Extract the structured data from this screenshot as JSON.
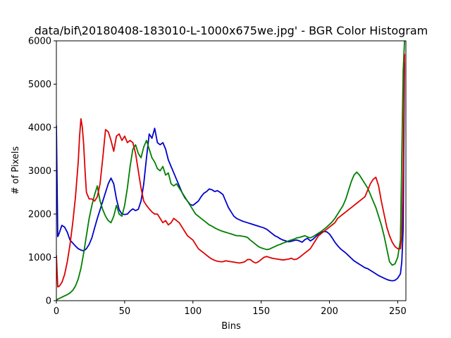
{
  "chart_data": {
    "type": "line",
    "title": "data/bif\\20180408-183010-L-1000x675we.jpg' - BGR Color Histogram",
    "xlabel": "Bins",
    "ylabel": "# of Pixels",
    "xlim": [
      0,
      256
    ],
    "ylim": [
      0,
      6000
    ],
    "xticks": [
      0,
      50,
      100,
      150,
      200,
      250
    ],
    "yticks": [
      0,
      1000,
      2000,
      3000,
      4000,
      5000,
      6000
    ],
    "xtick_labels": [
      "0",
      "50",
      "100",
      "150",
      "200",
      "250"
    ],
    "ytick_labels": [
      "0",
      "1000",
      "2000",
      "3000",
      "4000",
      "5000",
      "6000"
    ],
    "grid": false,
    "series": [
      {
        "color": "#0000cc",
        "x": [
          0,
          1,
          2,
          4,
          6,
          8,
          10,
          12,
          14,
          16,
          18,
          20,
          22,
          24,
          26,
          28,
          30,
          32,
          34,
          36,
          38,
          40,
          42,
          44,
          46,
          48,
          50,
          52,
          54,
          56,
          58,
          60,
          62,
          64,
          66,
          68,
          70,
          72,
          74,
          76,
          78,
          80,
          82,
          84,
          86,
          88,
          90,
          92,
          94,
          96,
          98,
          100,
          102,
          104,
          106,
          108,
          110,
          112,
          114,
          116,
          118,
          120,
          122,
          124,
          126,
          128,
          130,
          132,
          134,
          136,
          138,
          140,
          142,
          144,
          146,
          148,
          150,
          152,
          154,
          156,
          158,
          160,
          162,
          164,
          166,
          168,
          170,
          172,
          174,
          176,
          178,
          180,
          182,
          184,
          186,
          188,
          190,
          192,
          194,
          196,
          198,
          200,
          202,
          204,
          206,
          208,
          210,
          212,
          214,
          216,
          218,
          220,
          222,
          224,
          226,
          228,
          230,
          232,
          234,
          236,
          238,
          240,
          242,
          244,
          246,
          248,
          250,
          252,
          253,
          254,
          255
        ],
        "y": [
          4050,
          1480,
          1550,
          1740,
          1700,
          1580,
          1400,
          1330,
          1260,
          1200,
          1170,
          1150,
          1200,
          1300,
          1450,
          1680,
          1900,
          2100,
          2300,
          2500,
          2700,
          2830,
          2700,
          2350,
          2100,
          2000,
          1990,
          2000,
          2070,
          2120,
          2080,
          2110,
          2300,
          2700,
          3300,
          3850,
          3750,
          3980,
          3650,
          3600,
          3650,
          3500,
          3250,
          3100,
          2950,
          2800,
          2650,
          2500,
          2380,
          2300,
          2220,
          2200,
          2250,
          2300,
          2400,
          2480,
          2520,
          2580,
          2560,
          2520,
          2540,
          2500,
          2450,
          2300,
          2150,
          2050,
          1950,
          1900,
          1870,
          1840,
          1820,
          1800,
          1780,
          1760,
          1740,
          1720,
          1700,
          1680,
          1650,
          1600,
          1550,
          1500,
          1470,
          1430,
          1400,
          1380,
          1360,
          1370,
          1390,
          1400,
          1380,
          1350,
          1410,
          1440,
          1380,
          1420,
          1480,
          1540,
          1580,
          1600,
          1590,
          1540,
          1450,
          1350,
          1270,
          1200,
          1150,
          1100,
          1040,
          980,
          920,
          880,
          840,
          800,
          760,
          740,
          700,
          660,
          620,
          580,
          550,
          520,
          490,
          470,
          460,
          470,
          520,
          620,
          900,
          1650,
          5500
        ]
      },
      {
        "color": "#007f00",
        "x": [
          0,
          2,
          4,
          6,
          8,
          10,
          12,
          14,
          16,
          18,
          20,
          22,
          24,
          26,
          28,
          30,
          32,
          34,
          36,
          38,
          40,
          42,
          44,
          46,
          48,
          50,
          52,
          54,
          56,
          58,
          60,
          62,
          64,
          66,
          68,
          70,
          72,
          74,
          76,
          78,
          80,
          82,
          84,
          86,
          88,
          90,
          92,
          94,
          96,
          98,
          100,
          102,
          104,
          106,
          108,
          110,
          112,
          114,
          116,
          118,
          120,
          122,
          124,
          126,
          128,
          130,
          132,
          134,
          136,
          138,
          140,
          142,
          144,
          146,
          148,
          150,
          152,
          154,
          156,
          158,
          160,
          162,
          164,
          166,
          168,
          170,
          172,
          174,
          176,
          178,
          180,
          182,
          184,
          186,
          188,
          190,
          192,
          194,
          196,
          198,
          200,
          202,
          204,
          206,
          208,
          210,
          212,
          214,
          216,
          218,
          220,
          222,
          224,
          226,
          228,
          230,
          232,
          234,
          236,
          238,
          240,
          242,
          244,
          246,
          248,
          250,
          252,
          254,
          255
        ],
        "y": [
          20,
          50,
          80,
          110,
          140,
          180,
          240,
          340,
          500,
          750,
          1100,
          1500,
          1900,
          2200,
          2450,
          2650,
          2300,
          2100,
          1950,
          1850,
          1800,
          1950,
          2200,
          2000,
          1950,
          2200,
          2600,
          3100,
          3500,
          3600,
          3400,
          3300,
          3550,
          3700,
          3500,
          3300,
          3200,
          3050,
          3000,
          3100,
          2900,
          2950,
          2700,
          2650,
          2700,
          2600,
          2500,
          2400,
          2300,
          2200,
          2100,
          2000,
          1950,
          1900,
          1850,
          1800,
          1750,
          1720,
          1680,
          1650,
          1620,
          1600,
          1580,
          1560,
          1540,
          1520,
          1500,
          1500,
          1490,
          1480,
          1460,
          1400,
          1350,
          1300,
          1250,
          1220,
          1200,
          1180,
          1190,
          1220,
          1250,
          1280,
          1300,
          1330,
          1350,
          1380,
          1400,
          1420,
          1450,
          1460,
          1480,
          1500,
          1470,
          1450,
          1480,
          1520,
          1560,
          1600,
          1650,
          1700,
          1760,
          1820,
          1900,
          2000,
          2100,
          2200,
          2350,
          2550,
          2750,
          2900,
          2970,
          2900,
          2800,
          2700,
          2600,
          2450,
          2300,
          2150,
          1950,
          1750,
          1500,
          1200,
          900,
          820,
          850,
          1000,
          1400,
          5300,
          6000
        ]
      },
      {
        "color": "#dd0000",
        "x": [
          0,
          1,
          2,
          4,
          6,
          8,
          10,
          12,
          14,
          16,
          17,
          18,
          19,
          20,
          21,
          22,
          24,
          26,
          28,
          30,
          32,
          34,
          36,
          38,
          40,
          42,
          44,
          46,
          48,
          50,
          52,
          54,
          56,
          58,
          60,
          62,
          64,
          66,
          68,
          70,
          72,
          74,
          76,
          78,
          80,
          82,
          84,
          86,
          88,
          90,
          92,
          94,
          96,
          98,
          100,
          102,
          104,
          106,
          108,
          110,
          112,
          114,
          116,
          118,
          120,
          122,
          124,
          126,
          128,
          130,
          132,
          134,
          136,
          138,
          140,
          142,
          144,
          146,
          148,
          150,
          152,
          154,
          156,
          158,
          160,
          162,
          164,
          166,
          168,
          170,
          172,
          174,
          176,
          178,
          180,
          182,
          184,
          186,
          188,
          190,
          192,
          194,
          196,
          198,
          200,
          202,
          204,
          206,
          208,
          210,
          212,
          214,
          216,
          218,
          220,
          222,
          224,
          226,
          228,
          230,
          232,
          234,
          236,
          238,
          240,
          242,
          244,
          246,
          248,
          250,
          252,
          253,
          254,
          255
        ],
        "y": [
          1050,
          320,
          330,
          420,
          600,
          900,
          1300,
          1800,
          2400,
          3200,
          3800,
          4200,
          4000,
          3600,
          3000,
          2500,
          2350,
          2350,
          2300,
          2400,
          2700,
          3300,
          3950,
          3900,
          3700,
          3450,
          3800,
          3850,
          3700,
          3800,
          3650,
          3700,
          3650,
          3400,
          3000,
          2600,
          2300,
          2200,
          2120,
          2050,
          2000,
          2000,
          1900,
          1800,
          1850,
          1750,
          1800,
          1900,
          1850,
          1800,
          1700,
          1600,
          1500,
          1450,
          1400,
          1300,
          1200,
          1150,
          1100,
          1050,
          1000,
          960,
          930,
          910,
          900,
          900,
          920,
          910,
          900,
          890,
          880,
          870,
          880,
          900,
          950,
          950,
          900,
          870,
          900,
          950,
          1000,
          1020,
          1000,
          980,
          970,
          960,
          950,
          940,
          950,
          960,
          980,
          950,
          960,
          1000,
          1050,
          1100,
          1150,
          1200,
          1300,
          1400,
          1500,
          1550,
          1600,
          1650,
          1700,
          1750,
          1800,
          1900,
          1950,
          2000,
          2050,
          2100,
          2150,
          2200,
          2250,
          2300,
          2350,
          2400,
          2550,
          2700,
          2800,
          2850,
          2650,
          2300,
          2000,
          1700,
          1500,
          1350,
          1250,
          1200,
          1200,
          1500,
          3000,
          5700
        ]
      }
    ]
  }
}
